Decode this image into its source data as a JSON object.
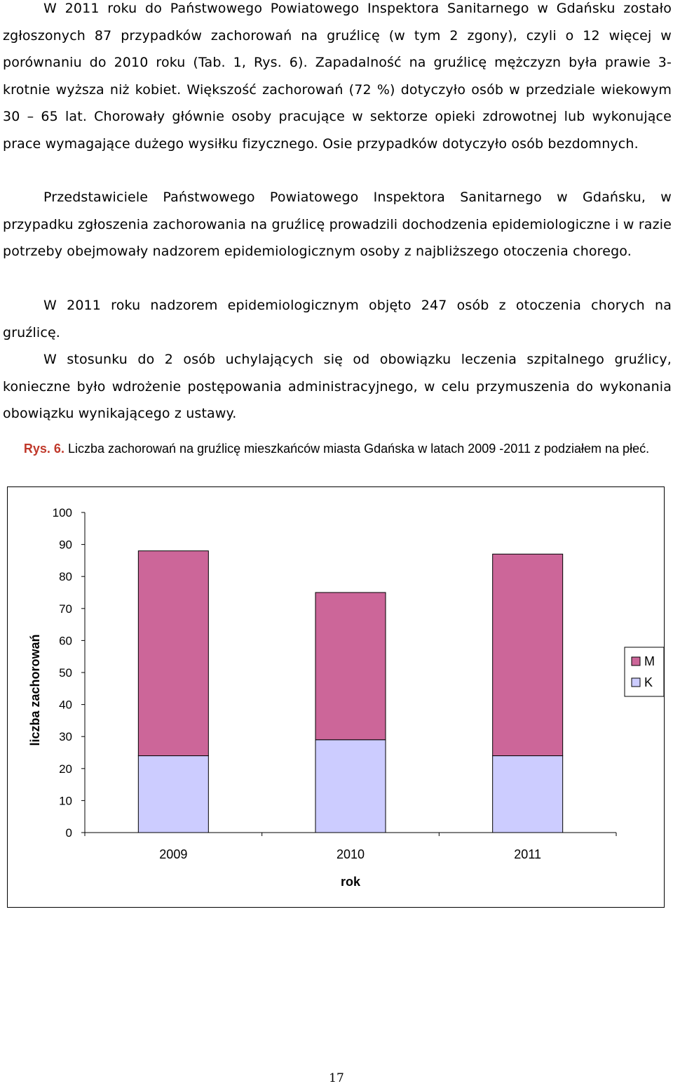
{
  "paragraphs": [
    "W 2011 roku do Państwowego Powiatowego Inspektora Sanitarnego w Gdańsku zostało zgłoszonych 87 przypadków zachorowań na gruźlicę (w tym 2 zgony), czyli o 12 więcej w porównaniu do 2010 roku (Tab. 1, Rys. 6). Zapadalność na gruźlicę mężczyzn była prawie 3-krotnie wyższa niż kobiet. Większość zachorowań (72 %) dotyczyło osób w przedziale wiekowym 30 – 65 lat. Chorowały głównie osoby pracujące w sektorze opieki zdrowotnej lub wykonujące prace wymagające dużego wysiłku fizycznego. Osie przypadków dotyczyło osób bezdomnych.",
    "Przedstawiciele Państwowego Powiatowego Inspektora Sanitarnego w Gdańsku, w przypadku zgłoszenia zachorowania na gruźlicę prowadzili dochodzenia epidemiologiczne i w razie potrzeby obejmowały nadzorem epidemiologicznym osoby z najbliższego otoczenia chorego.",
    "W 2011 roku nadzorem epidemiologicznym objęto 247 osób z otoczenia chorych na gruźlicę.",
    "W stosunku do 2 osób uchylających się od obowiązku leczenia szpitalnego gruźlicy, konieczne było wdrożenie postępowania administracyjnego, w celu przymuszenia do wykonania obowiązku wynikającego z ustawy."
  ],
  "caption": {
    "label": "Rys. 6.",
    "text": "Liczba zachorowań na gruźlicę mieszkańców miasta Gdańska w latach 2009 -2011 z podziałem na płeć."
  },
  "chart_data": {
    "type": "bar",
    "stacked": true,
    "categories": [
      "2009",
      "2010",
      "2011"
    ],
    "series": [
      {
        "name": "K",
        "values": [
          24,
          29,
          24
        ],
        "color": "#ccccff"
      },
      {
        "name": "M",
        "values": [
          64,
          46,
          63
        ],
        "color": "#cc6699"
      }
    ],
    "xlabel": "rok",
    "ylabel": "liczba zachorowań",
    "ylim": [
      0,
      100
    ],
    "yticks": [
      0,
      10,
      20,
      30,
      40,
      50,
      60,
      70,
      80,
      90,
      100
    ],
    "legend": [
      "M",
      "K"
    ],
    "legend_position": "right",
    "grid": false
  },
  "page_number": "17"
}
